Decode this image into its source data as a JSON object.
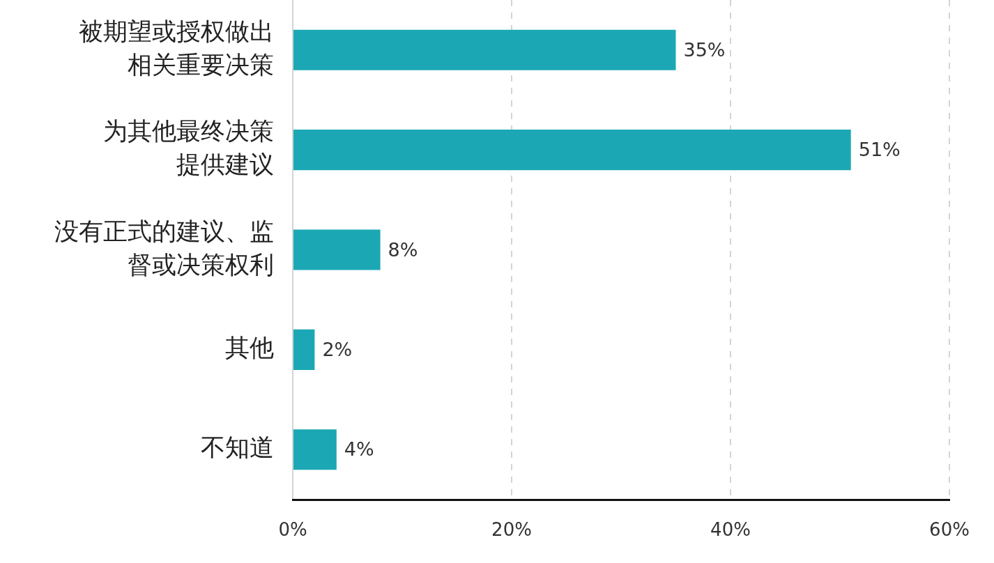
{
  "chart_data": {
    "type": "bar",
    "orientation": "horizontal",
    "categories": [
      "被期望或授权做出相关重要决策",
      "为其他最终决策提供建议",
      "没有正式的建议、监督或决策权利",
      "其他",
      "不知道"
    ],
    "values": [
      35,
      51,
      8,
      2,
      4
    ],
    "value_labels": [
      "35%",
      "51%",
      "8%",
      "2%",
      "4%"
    ],
    "color": "#1ba8b4",
    "xlim": [
      0,
      60
    ],
    "xticks": [
      {
        "value": 0,
        "label": "0%"
      },
      {
        "value": 20,
        "label": "20%"
      },
      {
        "value": 40,
        "label": "40%"
      },
      {
        "value": 60,
        "label": "60%"
      }
    ],
    "grid": "x"
  }
}
